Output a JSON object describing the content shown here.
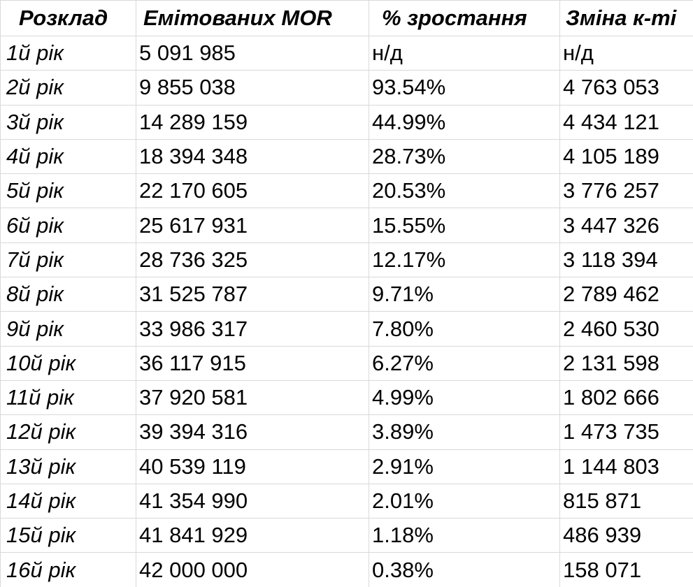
{
  "table": {
    "headers": [
      "Розклад",
      "Емітованих MOR",
      "% зростання",
      "Зміна к-ті"
    ],
    "rows": [
      [
        "1й рік",
        "5 091 985",
        "н/д",
        "н/д"
      ],
      [
        "2й рік",
        "9 855 038",
        "93.54%",
        "4 763 053"
      ],
      [
        "3й рік",
        "14 289 159",
        "44.99%",
        "4 434 121"
      ],
      [
        "4й рік",
        "18 394 348",
        "28.73%",
        "4 105 189"
      ],
      [
        "5й рік",
        "22 170 605",
        "20.53%",
        "3 776 257"
      ],
      [
        "6й рік",
        "25 617 931",
        "15.55%",
        "3 447 326"
      ],
      [
        "7й рік",
        "28 736 325",
        "12.17%",
        "3 118 394"
      ],
      [
        "8й рік",
        "31 525 787",
        "9.71%",
        "2 789 462"
      ],
      [
        "9й рік",
        "33 986 317",
        "7.80%",
        "2 460 530"
      ],
      [
        "10й рік",
        "36 117 915",
        "6.27%",
        "2 131 598"
      ],
      [
        "11й рік",
        "37 920 581",
        "4.99%",
        "1 802 666"
      ],
      [
        "12й рік",
        "39 394 316",
        "3.89%",
        "1 473 735"
      ],
      [
        "13й рік",
        "40 539 119",
        "2.91%",
        "1 144 803"
      ],
      [
        "14й рік",
        "41 354 990",
        "2.01%",
        "815 871"
      ],
      [
        "15й рік",
        "41 841 929",
        "1.18%",
        "486 939"
      ],
      [
        "16й рік",
        "42 000 000",
        "0.38%",
        "158 071"
      ]
    ]
  },
  "colors": {
    "gridline": "#d9d9d9",
    "text": "#000000",
    "background": "#ffffff"
  }
}
